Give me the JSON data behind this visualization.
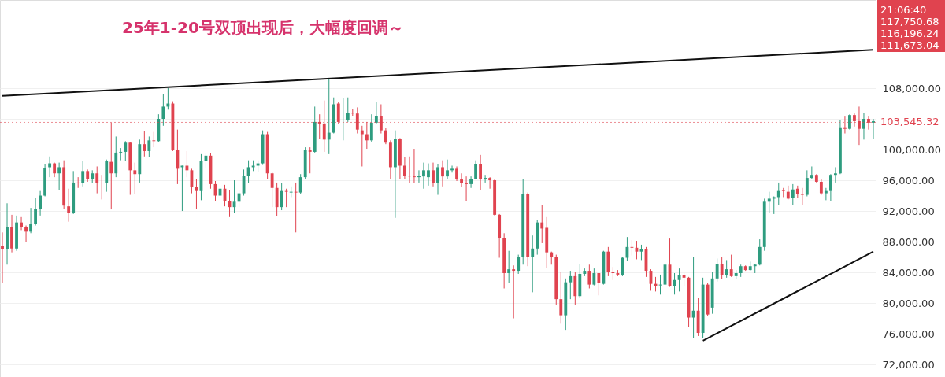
{
  "chart_data": {
    "type": "candlestick",
    "title": "25年1-20号双顶出现后，大幅度回调～",
    "categories": [
      null,
      null,
      null,
      null,
      null,
      null,
      null,
      null,
      null,
      null,
      null,
      null,
      null,
      null,
      null,
      null,
      null,
      null,
      null,
      null,
      null,
      null,
      null,
      null,
      null,
      null,
      null,
      null,
      null,
      null,
      null,
      null,
      null,
      null,
      null,
      null,
      null,
      null,
      null,
      null,
      null,
      null,
      null,
      null,
      null,
      null,
      null,
      null,
      null,
      null,
      null,
      null,
      null,
      null,
      null,
      null,
      null,
      null,
      null,
      null,
      null,
      null,
      null,
      null,
      null,
      null,
      null,
      null,
      null,
      null,
      null,
      null,
      null,
      null,
      null,
      null,
      null,
      null,
      null,
      null,
      null,
      null,
      null,
      null,
      null,
      null,
      null,
      null,
      null,
      null,
      null,
      null,
      null,
      null,
      null,
      null,
      null,
      null,
      null,
      null,
      null,
      null,
      null,
      null,
      null,
      null,
      null,
      null,
      null,
      null,
      null,
      null,
      null,
      null,
      null,
      null,
      null,
      null,
      null,
      null,
      null,
      null,
      null,
      null,
      null,
      null,
      null,
      null,
      null,
      null,
      null,
      null,
      null,
      null,
      null,
      null,
      null,
      null,
      null,
      null,
      null,
      null,
      null,
      null,
      null,
      null,
      null,
      null,
      null,
      null,
      null,
      null,
      null,
      null,
      null,
      null,
      null,
      null,
      null,
      null,
      null,
      null,
      null,
      null,
      null,
      null,
      null,
      null,
      null,
      null,
      null,
      null,
      null,
      null,
      null,
      null,
      null,
      null,
      null,
      null,
      null,
      null,
      null,
      null,
      null
    ],
    "ohlc": [
      [
        87500,
        89200,
        82600,
        87000
      ],
      [
        87000,
        93000,
        85000,
        89900
      ],
      [
        89900,
        91500,
        86600,
        87100
      ],
      [
        87100,
        91400,
        86800,
        90500
      ],
      [
        90500,
        91200,
        89500,
        89900
      ],
      [
        89900,
        90100,
        88000,
        89300
      ],
      [
        89300,
        92400,
        89100,
        90300
      ],
      [
        90300,
        93700,
        90100,
        92300
      ],
      [
        92300,
        94600,
        91400,
        94000
      ],
      [
        94000,
        98100,
        93900,
        97600
      ],
      [
        97700,
        99100,
        96400,
        98200
      ],
      [
        98200,
        98300,
        96400,
        96900
      ],
      [
        96900,
        98300,
        94700,
        97700
      ],
      [
        97700,
        98600,
        92300,
        92700
      ],
      [
        92600,
        94900,
        90600,
        91700
      ],
      [
        91700,
        97200,
        91600,
        95700
      ],
      [
        95700,
        96400,
        95000,
        95600
      ],
      [
        95600,
        98500,
        95200,
        97200
      ],
      [
        97200,
        97400,
        95800,
        96200
      ],
      [
        96200,
        97300,
        95600,
        96900
      ],
      [
        96900,
        97800,
        94300,
        95600
      ],
      [
        95700,
        96700,
        93500,
        95600
      ],
      [
        95600,
        98700,
        94500,
        98500
      ],
      [
        98400,
        103500,
        92200,
        96900
      ],
      [
        96900,
        101700,
        96400,
        99600
      ],
      [
        99600,
        100200,
        98600,
        99700
      ],
      [
        99700,
        101100,
        98500,
        100900
      ],
      [
        100900,
        101000,
        94100,
        97300
      ],
      [
        97300,
        98300,
        94200,
        96800
      ],
      [
        96800,
        101300,
        95700,
        100700
      ],
      [
        100700,
        102400,
        99100,
        99800
      ],
      [
        99800,
        101700,
        99000,
        101200
      ],
      [
        101200,
        102300,
        100300,
        101100
      ],
      [
        101100,
        104600,
        101000,
        104000
      ],
      [
        104000,
        107200,
        103100,
        105600
      ],
      [
        105600,
        108000,
        105200,
        106000
      ],
      [
        106000,
        106300,
        99800,
        100000
      ],
      [
        100000,
        102600,
        95500,
        97500
      ],
      [
        97700,
        97900,
        92000,
        97900
      ],
      [
        97900,
        99800,
        96400,
        97300
      ],
      [
        97300,
        97500,
        94300,
        95100
      ],
      [
        95100,
        96200,
        92300,
        94600
      ],
      [
        94600,
        99400,
        93400,
        98500
      ],
      [
        98500,
        99600,
        97600,
        99200
      ],
      [
        99200,
        99500,
        94900,
        95500
      ],
      [
        95500,
        95900,
        93300,
        94000
      ],
      [
        94000,
        95000,
        93500,
        94900
      ],
      [
        94900,
        95400,
        92600,
        93300
      ],
      [
        93300,
        94700,
        91200,
        92500
      ],
      [
        92500,
        96000,
        91700,
        93200
      ],
      [
        93200,
        94700,
        92500,
        94300
      ],
      [
        94300,
        97400,
        94000,
        96600
      ],
      [
        96600,
        98600,
        95600,
        97700
      ],
      [
        97700,
        98600,
        97200,
        97900
      ],
      [
        97900,
        98600,
        97100,
        98200
      ],
      [
        98200,
        102500,
        98000,
        102000
      ],
      [
        102000,
        102300,
        96200,
        96900
      ],
      [
        96900,
        97100,
        92500,
        95000
      ],
      [
        95000,
        95700,
        91300,
        92500
      ],
      [
        92500,
        95600,
        92100,
        94600
      ],
      [
        94600,
        94900,
        92500,
        94500
      ],
      [
        94400,
        95200,
        93800,
        94500
      ],
      [
        94500,
        95700,
        89200,
        94400
      ],
      [
        94400,
        96800,
        94200,
        96400
      ],
      [
        96400,
        100300,
        96200,
        99900
      ],
      [
        99900,
        100300,
        96900,
        99700
      ],
      [
        99700,
        105600,
        99600,
        103600
      ],
      [
        103600,
        104600,
        101400,
        103400
      ],
      [
        103400,
        106400,
        99700,
        101300
      ],
      [
        101300,
        109200,
        99400,
        102200
      ],
      [
        102200,
        106800,
        102100,
        105900
      ],
      [
        106000,
        106200,
        103300,
        103600
      ],
      [
        103800,
        106700,
        101200,
        103900
      ],
      [
        103800,
        106800,
        103600,
        104800
      ],
      [
        104800,
        105300,
        104400,
        104700
      ],
      [
        104700,
        105500,
        102100,
        102600
      ],
      [
        102500,
        103100,
        97800,
        102000
      ],
      [
        102000,
        103600,
        100100,
        101200
      ],
      [
        101200,
        104600,
        101000,
        103500
      ],
      [
        103500,
        106200,
        103300,
        104400
      ],
      [
        104400,
        105900,
        102100,
        102500
      ],
      [
        102500,
        102800,
        100700,
        100900
      ],
      [
        100900,
        101200,
        96200,
        97700
      ],
      [
        97700,
        102500,
        91100,
        101400
      ],
      [
        101400,
        101500,
        96200,
        97900
      ],
      [
        97900,
        99000,
        96200,
        96600
      ],
      [
        96600,
        99100,
        95600,
        96500
      ],
      [
        96500,
        100100,
        95600,
        96400
      ],
      [
        96400,
        97300,
        95700,
        96600
      ],
      [
        96500,
        98300,
        94900,
        97300
      ],
      [
        96400,
        98200,
        95300,
        97300
      ],
      [
        97300,
        98300,
        95200,
        95600
      ],
      [
        95600,
        98100,
        94100,
        97700
      ],
      [
        97700,
        98600,
        95200,
        96500
      ],
      [
        96500,
        98700,
        96200,
        97300
      ],
      [
        97300,
        97900,
        97000,
        97500
      ],
      [
        97500,
        97800,
        95900,
        96100
      ],
      [
        96100,
        96900,
        95100,
        95600
      ],
      [
        95600,
        96500,
        93300,
        95500
      ],
      [
        95500,
        96500,
        95000,
        96200
      ],
      [
        96200,
        98600,
        96100,
        98100
      ],
      [
        98100,
        99300,
        94700,
        96100
      ],
      [
        96100,
        96700,
        95700,
        96300
      ],
      [
        96300,
        96400,
        94900,
        96000
      ],
      [
        96000,
        96200,
        91300,
        91500
      ],
      [
        91500,
        91600,
        85900,
        88500
      ],
      [
        88500,
        89100,
        81900,
        83900
      ],
      [
        83900,
        86800,
        82600,
        84400
      ],
      [
        84400,
        84900,
        78000,
        84200
      ],
      [
        84200,
        86300,
        83800,
        86000
      ],
      [
        86000,
        96200,
        85000,
        94200
      ],
      [
        94200,
        94400,
        84800,
        86000
      ],
      [
        86000,
        88800,
        81400,
        87100
      ],
      [
        87100,
        90800,
        86300,
        90500
      ],
      [
        90500,
        92800,
        87800,
        89700
      ],
      [
        89800,
        91200,
        84600,
        86600
      ],
      [
        86600,
        86700,
        85000,
        86000
      ],
      [
        86000,
        86300,
        79800,
        80500
      ],
      [
        80500,
        84000,
        77300,
        78400
      ],
      [
        78400,
        83200,
        76500,
        82700
      ],
      [
        82700,
        84200,
        80500,
        83500
      ],
      [
        83500,
        84100,
        79800,
        80900
      ],
      [
        80900,
        85100,
        80700,
        83800
      ],
      [
        83800,
        84500,
        83500,
        84200
      ],
      [
        84200,
        85000,
        81900,
        82400
      ],
      [
        82400,
        84500,
        82300,
        83900
      ],
      [
        83900,
        83900,
        81000,
        82600
      ],
      [
        82500,
        86800,
        82400,
        86700
      ],
      [
        86700,
        87300,
        83500,
        84000
      ],
      [
        84100,
        84700,
        83000,
        83900
      ],
      [
        83900,
        84300,
        83500,
        83700
      ],
      [
        83600,
        86000,
        83500,
        85900
      ],
      [
        85900,
        88600,
        85500,
        87300
      ],
      [
        87300,
        88200,
        86200,
        87200
      ],
      [
        87200,
        88100,
        85700,
        86700
      ],
      [
        86700,
        87600,
        85600,
        87000
      ],
      [
        87000,
        87300,
        83400,
        84200
      ],
      [
        84200,
        84400,
        81600,
        82500
      ],
      [
        82500,
        83400,
        81500,
        82200
      ],
      [
        82300,
        83700,
        81100,
        82400
      ],
      [
        82400,
        85300,
        82200,
        85000
      ],
      [
        85000,
        88400,
        82100,
        82200
      ],
      [
        82200,
        83900,
        81100,
        83000
      ],
      [
        83000,
        84500,
        81500,
        83600
      ],
      [
        83600,
        83900,
        82200,
        83300
      ],
      [
        83300,
        83400,
        76900,
        78100
      ],
      [
        78100,
        86000,
        75400,
        79000
      ],
      [
        79000,
        80700,
        75700,
        76100
      ],
      [
        76100,
        83300,
        75400,
        82400
      ],
      [
        82400,
        82600,
        78300,
        78500
      ],
      [
        79400,
        84000,
        78600,
        83200
      ],
      [
        83200,
        85800,
        82800,
        85100
      ],
      [
        85100,
        86000,
        83100,
        83600
      ],
      [
        83600,
        85600,
        83300,
        84400
      ],
      [
        84400,
        86300,
        83400,
        83500
      ],
      [
        83500,
        84300,
        83100,
        83900
      ],
      [
        83900,
        85000,
        83400,
        84800
      ],
      [
        84800,
        84900,
        84200,
        84300
      ],
      [
        84300,
        85400,
        84200,
        84800
      ],
      [
        84800,
        85100,
        83900,
        85000
      ],
      [
        85000,
        88300,
        84900,
        87300
      ],
      [
        87300,
        93600,
        86800,
        93200
      ],
      [
        93200,
        94500,
        91700,
        93600
      ],
      [
        93600,
        93900,
        91600,
        93800
      ],
      [
        93800,
        95700,
        92800,
        94600
      ],
      [
        94700,
        95000,
        93800,
        94600
      ],
      [
        94500,
        95300,
        93500,
        93600
      ],
      [
        93700,
        95500,
        92800,
        94800
      ],
      [
        94900,
        95300,
        93700,
        94200
      ],
      [
        94200,
        95000,
        92800,
        94100
      ],
      [
        94100,
        97300,
        93900,
        96300
      ],
      [
        96300,
        97800,
        96200,
        96700
      ],
      [
        96700,
        96800,
        95700,
        95800
      ],
      [
        95800,
        96200,
        94100,
        94300
      ],
      [
        94300,
        95000,
        93400,
        94600
      ],
      [
        94600,
        96800,
        93300,
        96700
      ],
      [
        96700,
        97700,
        95700,
        96900
      ],
      [
        96900,
        103900,
        96800,
        102900
      ],
      [
        102900,
        104300,
        102100,
        102700
      ],
      [
        102700,
        104600,
        102600,
        104500
      ],
      [
        104500,
        104700,
        103000,
        103700
      ],
      [
        103700,
        105600,
        100600,
        102700
      ],
      [
        102700,
        104800,
        101300,
        104000
      ],
      [
        104000,
        104300,
        102600,
        103500
      ],
      [
        103500,
        104000,
        101400,
        103700
      ]
    ],
    "colors": [
      "#e0434f",
      "#2e9c7f",
      "#e0434f",
      "#2e9c7f",
      "#e0434f",
      "#e0434f",
      "#2e9c7f",
      "#2e9c7f",
      "#2e9c7f",
      "#2e9c7f",
      "#2e9c7f",
      "#e0434f",
      "#2e9c7f",
      "#e0434f",
      "#e0434f",
      "#2e9c7f",
      "#e0434f",
      "#2e9c7f",
      "#e0434f",
      "#2e9c7f",
      "#e0434f",
      "#e0434f",
      "#2e9c7f",
      "#e0434f",
      "#2e9c7f",
      "#2e9c7f",
      "#2e9c7f",
      "#e0434f",
      "#e0434f",
      "#2e9c7f",
      "#e0434f",
      "#2e9c7f",
      "#e0434f",
      "#2e9c7f",
      "#2e9c7f",
      "#2e9c7f",
      "#e0434f",
      "#e0434f",
      "#2e9c7f",
      "#e0434f",
      "#e0434f",
      "#e0434f",
      "#2e9c7f",
      "#2e9c7f",
      "#e0434f",
      "#e0434f",
      "#2e9c7f",
      "#e0434f",
      "#e0434f",
      "#2e9c7f",
      "#2e9c7f",
      "#2e9c7f",
      "#2e9c7f",
      "#2e9c7f",
      "#2e9c7f",
      "#2e9c7f",
      "#e0434f",
      "#e0434f",
      "#e0434f",
      "#2e9c7f",
      "#e0434f",
      "#2e9c7f",
      "#e0434f",
      "#2e9c7f",
      "#2e9c7f",
      "#e0434f",
      "#2e9c7f",
      "#e0434f",
      "#e0434f",
      "#2e9c7f",
      "#2e9c7f",
      "#e0434f",
      "#2e9c7f",
      "#2e9c7f",
      "#e0434f",
      "#e0434f",
      "#e0434f",
      "#e0434f",
      "#2e9c7f",
      "#2e9c7f",
      "#e0434f",
      "#e0434f",
      "#e0434f",
      "#2e9c7f",
      "#e0434f",
      "#e0434f",
      "#e0434f",
      "#e0434f",
      "#2e9c7f",
      "#2e9c7f",
      "#2e9c7f",
      "#e0434f",
      "#2e9c7f",
      "#e0434f",
      "#2e9c7f",
      "#2e9c7f",
      "#e0434f",
      "#e0434f",
      "#e0434f",
      "#2e9c7f",
      "#2e9c7f",
      "#e0434f",
      "#2e9c7f",
      "#e0434f",
      "#e0434f",
      "#e0434f",
      "#e0434f",
      "#2e9c7f",
      "#e0434f",
      "#2e9c7f",
      "#2e9c7f",
      "#e0434f",
      "#2e9c7f",
      "#2e9c7f",
      "#e0434f",
      "#e0434f",
      "#e0434f",
      "#e0434f",
      "#e0434f",
      "#2e9c7f",
      "#2e9c7f",
      "#e0434f",
      "#2e9c7f",
      "#2e9c7f",
      "#e0434f",
      "#2e9c7f",
      "#e0434f",
      "#2e9c7f",
      "#e0434f",
      "#e0434f",
      "#e0434f",
      "#2e9c7f",
      "#2e9c7f",
      "#e0434f",
      "#e0434f",
      "#2e9c7f",
      "#e0434f",
      "#e0434f",
      "#e0434f",
      "#2e9c7f",
      "#2e9c7f",
      "#e0434f",
      "#2e9c7f",
      "#2e9c7f",
      "#e0434f",
      "#e0434f",
      "#2e9c7f",
      "#e0434f",
      "#2e9c7f",
      "#e0434f",
      "#2e9c7f",
      "#2e9c7f",
      "#e0434f",
      "#2e9c7f",
      "#e0434f",
      "#2e9c7f",
      "#2e9c7f",
      "#e0434f",
      "#2e9c7f",
      "#2e9c7f",
      "#2e9c7f",
      "#2e9c7f",
      "#2e9c7f",
      "#2e9c7f",
      "#2e9c7f",
      "#e0434f",
      "#e0434f",
      "#2e9c7f",
      "#e0434f",
      "#e0434f",
      "#2e9c7f",
      "#2e9c7f",
      "#e0434f",
      "#e0434f",
      "#2e9c7f",
      "#2e9c7f",
      "#2e9c7f",
      "#2e9c7f",
      "#e0434f",
      "#2e9c7f",
      "#e0434f",
      "#e0434f",
      "#2e9c7f",
      "#e0434f",
      "#2e9c7f"
    ],
    "series": [
      {
        "type": "line",
        "color": "#111111",
        "values": [
          107000,
          null,
          null,
          null,
          null,
          null,
          null,
          null,
          null,
          null,
          null,
          null,
          null,
          null,
          null,
          null,
          null,
          null,
          null,
          null,
          null,
          null,
          null,
          null,
          null,
          null,
          null,
          null,
          null,
          null,
          null,
          null,
          null,
          null,
          null,
          null,
          null,
          null,
          null,
          null,
          null,
          null,
          null,
          null,
          null,
          null,
          null,
          null,
          null,
          null,
          null,
          null,
          null,
          null,
          null,
          null,
          null,
          null,
          null,
          null,
          null,
          null,
          null,
          null,
          null,
          null,
          null,
          null,
          null,
          null,
          null,
          null,
          null,
          null,
          null,
          null,
          null,
          null,
          null,
          null,
          null,
          null,
          null,
          null,
          null,
          null,
          null,
          null,
          null,
          null,
          null,
          null,
          null,
          null,
          null,
          null,
          null,
          null,
          null,
          null,
          null,
          null,
          null,
          null,
          null,
          null,
          null,
          null,
          null,
          null,
          null,
          null,
          null,
          null,
          null,
          null,
          null,
          null,
          null,
          null,
          null,
          null,
          null,
          null,
          null,
          null,
          null,
          null,
          null,
          null,
          null,
          null,
          null,
          null,
          null,
          null,
          null,
          null,
          null,
          null,
          null,
          null,
          null,
          null,
          null,
          null,
          null,
          null,
          null,
          null,
          null,
          null,
          null,
          null,
          null,
          null,
          null,
          null,
          null,
          null,
          null,
          null,
          null,
          null,
          null,
          null,
          null,
          null,
          null,
          null,
          null,
          null,
          null,
          null,
          null,
          null,
          null,
          null,
          null,
          null,
          null,
          null,
          null,
          null,
          113000
        ]
      },
      {
        "type": "line",
        "color": "#111111",
        "values": [
          null,
          null,
          null,
          null,
          null,
          null,
          null,
          null,
          null,
          null,
          null,
          null,
          null,
          null,
          null,
          null,
          null,
          null,
          null,
          null,
          null,
          null,
          null,
          null,
          null,
          null,
          null,
          null,
          null,
          null,
          null,
          null,
          null,
          null,
          null,
          null,
          null,
          null,
          null,
          null,
          null,
          null,
          null,
          null,
          null,
          null,
          null,
          null,
          null,
          null,
          null,
          null,
          null,
          null,
          null,
          null,
          null,
          null,
          null,
          null,
          null,
          null,
          null,
          null,
          null,
          null,
          null,
          null,
          null,
          null,
          null,
          null,
          null,
          null,
          null,
          null,
          null,
          null,
          null,
          null,
          null,
          null,
          null,
          null,
          null,
          null,
          null,
          null,
          null,
          null,
          null,
          null,
          null,
          null,
          null,
          null,
          null,
          null,
          null,
          null,
          null,
          null,
          null,
          null,
          null,
          null,
          null,
          null,
          null,
          null,
          null,
          null,
          null,
          null,
          null,
          null,
          null,
          null,
          null,
          null,
          null,
          null,
          null,
          null,
          null,
          null,
          null,
          null,
          null,
          null,
          null,
          null,
          null,
          null,
          null,
          null,
          null,
          null,
          null,
          null,
          null,
          null,
          null,
          null,
          null,
          null,
          null,
          null,
          75100,
          null,
          null,
          null,
          null,
          null,
          null,
          null,
          null,
          null,
          null,
          null,
          null,
          null,
          null,
          null,
          null,
          null,
          null,
          null,
          null,
          null,
          null,
          null,
          null,
          null,
          null,
          null,
          null,
          null,
          null,
          null,
          null,
          null,
          null,
          null,
          86700
        ]
      }
    ],
    "ylim": [
      70360,
      119490
    ],
    "yticks": [
      {
        "value": 72000,
        "label": "72,000.00"
      },
      {
        "value": 76000,
        "label": "76,000.00"
      },
      {
        "value": 80000,
        "label": "80,000.00"
      },
      {
        "value": 84000,
        "label": "84,000.00"
      },
      {
        "value": 88000,
        "label": "88,000.00"
      },
      {
        "value": 92000,
        "label": "92,000.00"
      },
      {
        "value": 96000,
        "label": "96,000.00"
      },
      {
        "value": 100000,
        "label": "100,000.00"
      },
      {
        "value": 104000,
        "label": null
      },
      {
        "value": 108000,
        "label": "108,000.00"
      }
    ],
    "ref_lines": [
      {
        "axis": "y",
        "value": 103545.32,
        "label": "103,545.32",
        "color": "#e0434f",
        "line_style": "dotted"
      }
    ],
    "annotations": [
      "21:06:40",
      "117,750.68",
      "116,196.24",
      "111,673.04"
    ],
    "grid": "y"
  }
}
